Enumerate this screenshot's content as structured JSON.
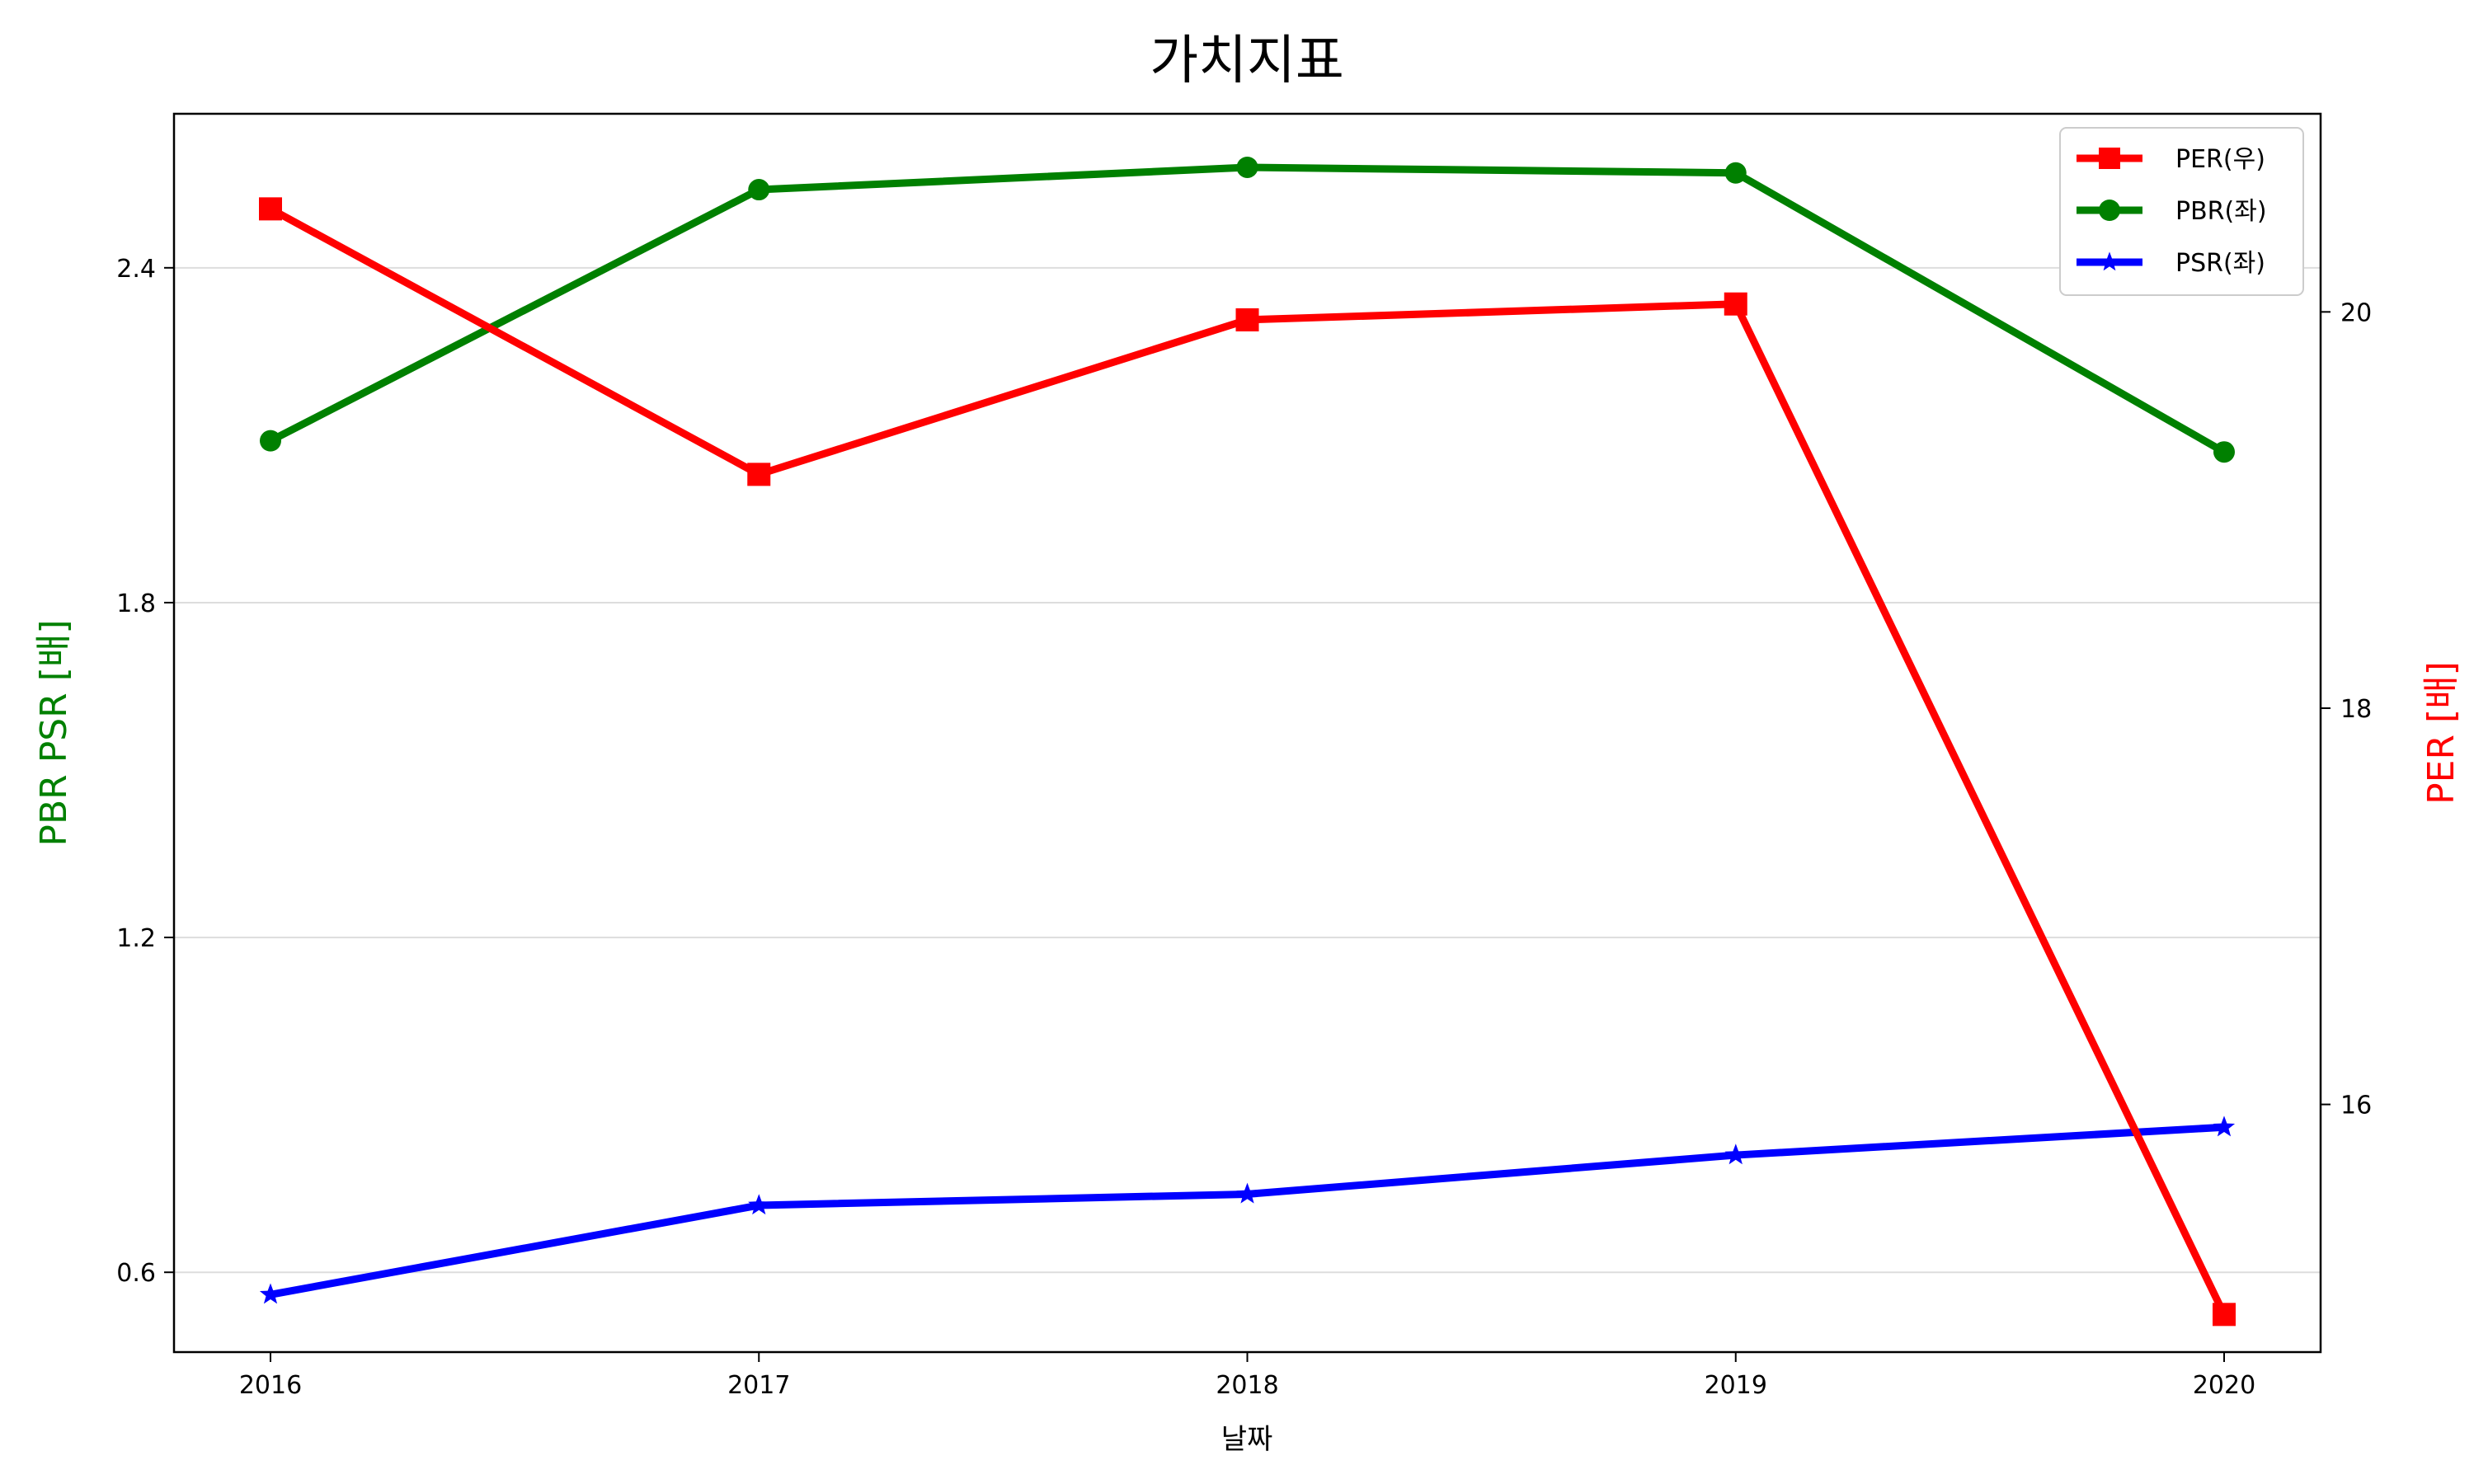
{
  "chart_data": {
    "type": "line",
    "title": "가치지표",
    "xlabel": "날짜",
    "ylabel_left": "PBR PSR [배]",
    "ylabel_right": "PER [배]",
    "categories": [
      "2016",
      "2017",
      "2018",
      "2019",
      "2020"
    ],
    "y_left_ticks": [
      "0.6",
      "1.2",
      "1.8",
      "2.4"
    ],
    "y_right_ticks": [
      "16",
      "18",
      "20"
    ],
    "ylim_left": [
      0.457,
      2.676
    ],
    "ylim_right": [
      14.75,
      21.0
    ],
    "grid": "horizontal (left axis)",
    "legend_position": "top-right",
    "series": [
      {
        "name": "PER(우)",
        "axis": "right",
        "marker": "square",
        "color": "#ff0000",
        "values": [
          20.52,
          19.18,
          19.96,
          20.04,
          14.94
        ]
      },
      {
        "name": "PBR(좌)",
        "axis": "left",
        "marker": "circle",
        "color": "#008000",
        "values": [
          2.09,
          2.54,
          2.58,
          2.57,
          2.07
        ]
      },
      {
        "name": "PSR(좌)",
        "axis": "left",
        "marker": "star",
        "color": "#0000ff",
        "values": [
          0.56,
          0.72,
          0.74,
          0.81,
          0.86
        ]
      }
    ]
  },
  "colors": {
    "left_axis_label": "#008000",
    "right_axis_label": "#ff0000",
    "grid": "#dddddd"
  }
}
